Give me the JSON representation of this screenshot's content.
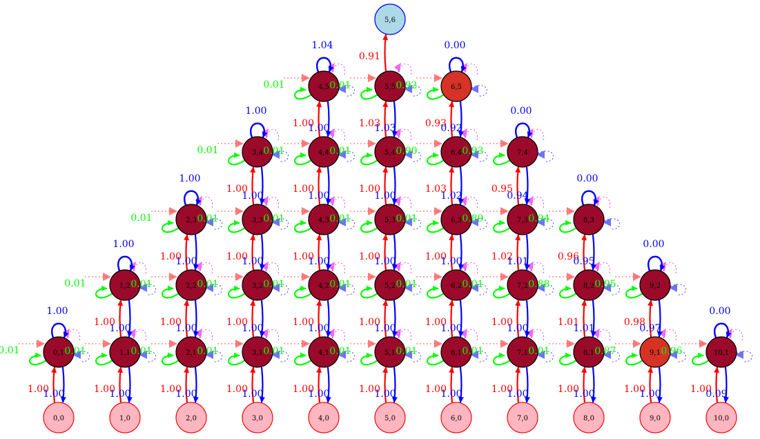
{
  "colors": {
    "up": "#ff0000",
    "down": "#0000ff",
    "self_left": "#00ff00",
    "self_top": "#0000ff",
    "ghost_left": "#ff5050",
    "ghost_right": "#4040ff",
    "ghost_top": "#ee44ee",
    "dark_fill": "#9b0a2a",
    "mid_fill": "#d63226",
    "bottom_fill": "#ffb6c1",
    "bottom_stroke": "#ee1111",
    "top_fill": "#add8e6",
    "top_stroke": "#0000ff"
  },
  "nodes": [
    {
      "id": "0,0",
      "label": "0,0",
      "type": "bottom"
    },
    {
      "id": "1,0",
      "label": "1,0",
      "type": "bottom"
    },
    {
      "id": "2,0",
      "label": "2,0",
      "type": "bottom"
    },
    {
      "id": "3,0",
      "label": "3,0",
      "type": "bottom"
    },
    {
      "id": "4,0",
      "label": "4,0",
      "type": "bottom"
    },
    {
      "id": "5,0",
      "label": "5,0",
      "type": "bottom"
    },
    {
      "id": "6,0",
      "label": "6,0",
      "type": "bottom"
    },
    {
      "id": "7,0",
      "label": "7,0",
      "type": "bottom"
    },
    {
      "id": "8,0",
      "label": "8,0",
      "type": "bottom"
    },
    {
      "id": "9,0",
      "label": "9,0",
      "type": "bottom"
    },
    {
      "id": "10,0",
      "label": "10,0",
      "type": "bottom"
    },
    {
      "id": "0,1",
      "label": "0,1",
      "type": "dark"
    },
    {
      "id": "1,1",
      "label": "1,1",
      "type": "dark"
    },
    {
      "id": "2,1",
      "label": "2,1",
      "type": "dark"
    },
    {
      "id": "3,1",
      "label": "3,1",
      "type": "dark"
    },
    {
      "id": "4,1",
      "label": "4,1",
      "type": "dark"
    },
    {
      "id": "5,1",
      "label": "5,1",
      "type": "dark"
    },
    {
      "id": "6,1",
      "label": "6,1",
      "type": "dark"
    },
    {
      "id": "7,1",
      "label": "7,1",
      "type": "dark"
    },
    {
      "id": "8,1",
      "label": "8,1",
      "type": "dark"
    },
    {
      "id": "9,1",
      "label": "9,1",
      "type": "mid"
    },
    {
      "id": "10,1",
      "label": "10,1",
      "type": "dark"
    },
    {
      "id": "1,2",
      "label": "1,2",
      "type": "dark"
    },
    {
      "id": "2,2",
      "label": "2,2",
      "type": "dark"
    },
    {
      "id": "3,2",
      "label": "3,2",
      "type": "dark"
    },
    {
      "id": "4,2",
      "label": "4,2",
      "type": "dark"
    },
    {
      "id": "5,2",
      "label": "5,2",
      "type": "dark"
    },
    {
      "id": "6,2",
      "label": "6,2",
      "type": "dark"
    },
    {
      "id": "7,2",
      "label": "7,2",
      "type": "dark"
    },
    {
      "id": "8,2",
      "label": "8,2",
      "type": "dark"
    },
    {
      "id": "9,2",
      "label": "9,2",
      "type": "dark"
    },
    {
      "id": "2,3",
      "label": "2,3",
      "type": "dark"
    },
    {
      "id": "3,3",
      "label": "3,3",
      "type": "dark"
    },
    {
      "id": "4,3",
      "label": "4,3",
      "type": "dark"
    },
    {
      "id": "5,3",
      "label": "5,3",
      "type": "dark"
    },
    {
      "id": "6,3",
      "label": "6,3",
      "type": "dark"
    },
    {
      "id": "7,3",
      "label": "7,3",
      "type": "dark"
    },
    {
      "id": "8,3",
      "label": "8,3",
      "type": "dark"
    },
    {
      "id": "3,4",
      "label": "3,4",
      "type": "dark"
    },
    {
      "id": "4,4",
      "label": "4,4",
      "type": "dark"
    },
    {
      "id": "5,4",
      "label": "5,4",
      "type": "dark"
    },
    {
      "id": "6,4",
      "label": "6,4",
      "type": "dark"
    },
    {
      "id": "7,4",
      "label": "7,4",
      "type": "dark"
    },
    {
      "id": "4,5",
      "label": "4,5",
      "type": "dark"
    },
    {
      "id": "5,5",
      "label": "5,5",
      "type": "dark"
    },
    {
      "id": "6,5",
      "label": "6,5",
      "type": "mid"
    },
    {
      "id": "5,6",
      "label": "5,6",
      "type": "top"
    }
  ],
  "edges": [
    {
      "from": "0,0",
      "to": "0,1",
      "label": "1.00",
      "kind": "up"
    },
    {
      "from": "1,0",
      "to": "1,1",
      "label": "1.00",
      "kind": "up"
    },
    {
      "from": "2,0",
      "to": "2,1",
      "label": "1.00",
      "kind": "up"
    },
    {
      "from": "3,0",
      "to": "3,1",
      "label": "1.00",
      "kind": "up"
    },
    {
      "from": "4,0",
      "to": "4,1",
      "label": "1.00",
      "kind": "up"
    },
    {
      "from": "5,0",
      "to": "5,1",
      "label": "1.00",
      "kind": "up"
    },
    {
      "from": "6,0",
      "to": "6,1",
      "label": "1.00",
      "kind": "up"
    },
    {
      "from": "7,0",
      "to": "7,1",
      "label": "1.00",
      "kind": "up"
    },
    {
      "from": "8,0",
      "to": "8,1",
      "label": "1.00",
      "kind": "up"
    },
    {
      "from": "9,0",
      "to": "9,1",
      "label": "1.00",
      "kind": "up"
    },
    {
      "from": "10,0",
      "to": "10,1",
      "label": "1.00",
      "kind": "up"
    },
    {
      "from": "0,1",
      "to": "0,0",
      "label": "1.00",
      "kind": "down"
    },
    {
      "from": "1,1",
      "to": "1,0",
      "label": "1.00",
      "kind": "down"
    },
    {
      "from": "2,1",
      "to": "2,0",
      "label": "1.00",
      "kind": "down"
    },
    {
      "from": "3,1",
      "to": "3,0",
      "label": "1.00",
      "kind": "down"
    },
    {
      "from": "4,1",
      "to": "4,0",
      "label": "1.00",
      "kind": "down"
    },
    {
      "from": "5,1",
      "to": "5,0",
      "label": "1.00",
      "kind": "down"
    },
    {
      "from": "6,1",
      "to": "6,0",
      "label": "1.00",
      "kind": "down"
    },
    {
      "from": "7,1",
      "to": "7,0",
      "label": "1.00",
      "kind": "down"
    },
    {
      "from": "8,1",
      "to": "8,0",
      "label": "1.00",
      "kind": "down"
    },
    {
      "from": "9,1",
      "to": "9,0",
      "label": "1.00",
      "kind": "down"
    },
    {
      "from": "10,1",
      "to": "10,0",
      "label": "0.09",
      "kind": "down"
    },
    {
      "from": "1,1",
      "to": "1,2",
      "label": "1.00",
      "kind": "up"
    },
    {
      "from": "2,1",
      "to": "2,2",
      "label": "1.00",
      "kind": "up"
    },
    {
      "from": "3,1",
      "to": "3,2",
      "label": "1.00",
      "kind": "up"
    },
    {
      "from": "4,1",
      "to": "4,2",
      "label": "1.00",
      "kind": "up"
    },
    {
      "from": "5,1",
      "to": "5,2",
      "label": "1.00",
      "kind": "up"
    },
    {
      "from": "6,1",
      "to": "6,2",
      "label": "1.00",
      "kind": "up"
    },
    {
      "from": "7,1",
      "to": "7,2",
      "label": "1.00",
      "kind": "up"
    },
    {
      "from": "8,1",
      "to": "8,2",
      "label": "1.01",
      "kind": "up"
    },
    {
      "from": "9,1",
      "to": "9,2",
      "label": "0.98",
      "kind": "up"
    },
    {
      "from": "1,2",
      "to": "1,1",
      "label": "1.00",
      "kind": "down"
    },
    {
      "from": "2,2",
      "to": "2,1",
      "label": "1.00",
      "kind": "down"
    },
    {
      "from": "3,2",
      "to": "3,1",
      "label": "1.00",
      "kind": "down"
    },
    {
      "from": "4,2",
      "to": "4,1",
      "label": "1.00",
      "kind": "down"
    },
    {
      "from": "5,2",
      "to": "5,1",
      "label": "1.00",
      "kind": "down"
    },
    {
      "from": "6,2",
      "to": "6,1",
      "label": "1.00",
      "kind": "down"
    },
    {
      "from": "7,2",
      "to": "7,1",
      "label": "1.00",
      "kind": "down"
    },
    {
      "from": "8,2",
      "to": "8,1",
      "label": "1.01",
      "kind": "down"
    },
    {
      "from": "9,2",
      "to": "9,1",
      "label": "0.97",
      "kind": "down"
    },
    {
      "from": "2,2",
      "to": "2,3",
      "label": "1.00",
      "kind": "up"
    },
    {
      "from": "3,2",
      "to": "3,3",
      "label": "1.00",
      "kind": "up"
    },
    {
      "from": "4,2",
      "to": "4,3",
      "label": "1.00",
      "kind": "up"
    },
    {
      "from": "5,2",
      "to": "5,3",
      "label": "1.00",
      "kind": "up"
    },
    {
      "from": "6,2",
      "to": "6,3",
      "label": "1.00",
      "kind": "up"
    },
    {
      "from": "7,2",
      "to": "7,3",
      "label": "1.02",
      "kind": "up"
    },
    {
      "from": "8,2",
      "to": "8,3",
      "label": "0.96",
      "kind": "up"
    },
    {
      "from": "2,3",
      "to": "2,2",
      "label": "1.00",
      "kind": "down"
    },
    {
      "from": "3,3",
      "to": "3,2",
      "label": "1.00",
      "kind": "down"
    },
    {
      "from": "4,3",
      "to": "4,2",
      "label": "1.00",
      "kind": "down"
    },
    {
      "from": "5,3",
      "to": "5,2",
      "label": "1.00",
      "kind": "down"
    },
    {
      "from": "6,3",
      "to": "6,2",
      "label": "1.00",
      "kind": "down"
    },
    {
      "from": "7,3",
      "to": "7,2",
      "label": "1.01",
      "kind": "down"
    },
    {
      "from": "8,3",
      "to": "8,2",
      "label": "0.95",
      "kind": "down"
    },
    {
      "from": "3,3",
      "to": "3,4",
      "label": "1.00",
      "kind": "up"
    },
    {
      "from": "4,3",
      "to": "4,4",
      "label": "1.00",
      "kind": "up"
    },
    {
      "from": "5,3",
      "to": "5,4",
      "label": "1.00",
      "kind": "up"
    },
    {
      "from": "6,3",
      "to": "6,4",
      "label": "1.03",
      "kind": "up"
    },
    {
      "from": "7,3",
      "to": "7,4",
      "label": "0.95",
      "kind": "up"
    },
    {
      "from": "3,4",
      "to": "3,3",
      "label": "1.00",
      "kind": "down"
    },
    {
      "from": "4,4",
      "to": "4,3",
      "label": "1.00",
      "kind": "down"
    },
    {
      "from": "5,4",
      "to": "5,3",
      "label": "1.00",
      "kind": "down"
    },
    {
      "from": "6,4",
      "to": "6,3",
      "label": "1.02",
      "kind": "down"
    },
    {
      "from": "7,4",
      "to": "7,3",
      "label": "0.94",
      "kind": "down"
    },
    {
      "from": "4,4",
      "to": "4,5",
      "label": "1.00",
      "kind": "up"
    },
    {
      "from": "5,4",
      "to": "5,5",
      "label": "1.03",
      "kind": "up"
    },
    {
      "from": "6,4",
      "to": "6,5",
      "label": "0.93",
      "kind": "up"
    },
    {
      "from": "4,5",
      "to": "4,4",
      "label": "1.00",
      "kind": "down"
    },
    {
      "from": "5,5",
      "to": "5,4",
      "label": "1.03",
      "kind": "down"
    },
    {
      "from": "6,5",
      "to": "6,4",
      "label": "0.92",
      "kind": "down"
    },
    {
      "from": "5,5",
      "to": "5,6",
      "label": "0.91",
      "kind": "up"
    }
  ],
  "side_labels": [
    {
      "node": "0,1",
      "left": "0.01",
      "right": "0.01"
    },
    {
      "node": "1,1",
      "right": "0.01"
    },
    {
      "node": "2,1",
      "right": "0.01"
    },
    {
      "node": "3,1",
      "right": "0.01"
    },
    {
      "node": "4,1",
      "right": "0.01"
    },
    {
      "node": "5,1",
      "right": "0.01"
    },
    {
      "node": "6,1",
      "right": "0.01"
    },
    {
      "node": "7,1",
      "right": "0.01"
    },
    {
      "node": "8,1",
      "right": "0.87"
    },
    {
      "node": "9,1",
      "right": "0.96"
    },
    {
      "node": "1,2",
      "left": "0.01",
      "right": "0.01"
    },
    {
      "node": "2,2",
      "right": "0.01"
    },
    {
      "node": "3,2",
      "right": "0.01"
    },
    {
      "node": "4,2",
      "right": "0.01"
    },
    {
      "node": "5,2",
      "right": "0.01"
    },
    {
      "node": "6,2",
      "right": "0.01"
    },
    {
      "node": "7,2",
      "right": "0.88"
    },
    {
      "node": "8,2",
      "right": "0.95"
    },
    {
      "node": "2,3",
      "left": "0.01",
      "right": "0.01"
    },
    {
      "node": "3,3",
      "right": "0.01"
    },
    {
      "node": "4,3",
      "right": "0.01"
    },
    {
      "node": "5,3",
      "right": "0.01"
    },
    {
      "node": "6,3",
      "right": "0.89"
    },
    {
      "node": "7,3",
      "right": "0.94"
    },
    {
      "node": "3,4",
      "left": "0.01",
      "right": "0.01"
    },
    {
      "node": "4,4",
      "right": "0.01"
    },
    {
      "node": "5,4",
      "right": "0.90"
    },
    {
      "node": "6,4",
      "right": "0.93"
    },
    {
      "node": "4,5",
      "left": "0.01",
      "right": "0.01"
    },
    {
      "node": "5,5",
      "right": "0.92"
    }
  ],
  "top_loops": [
    {
      "node": "0,1",
      "label": "1.00"
    },
    {
      "node": "1,2",
      "label": "1.00"
    },
    {
      "node": "2,3",
      "label": "1.00"
    },
    {
      "node": "3,4",
      "label": "1.00"
    },
    {
      "node": "4,5",
      "label": "1.04"
    },
    {
      "node": "6,5",
      "label": "0.00"
    },
    {
      "node": "7,4",
      "label": "0.00"
    },
    {
      "node": "8,3",
      "label": "0.00"
    },
    {
      "node": "9,2",
      "label": "0.00"
    },
    {
      "node": "10,1",
      "label": "0.00"
    }
  ]
}
